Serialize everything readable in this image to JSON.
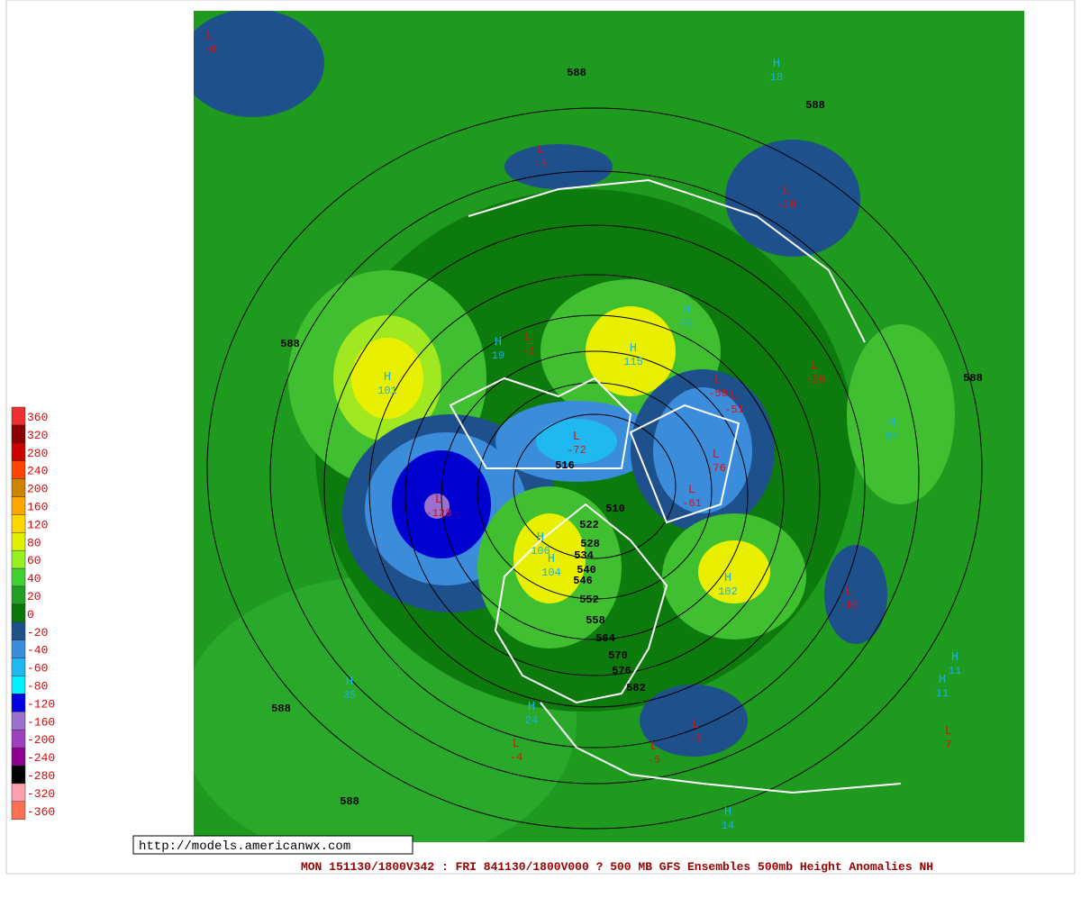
{
  "legend": {
    "items": [
      {
        "label": "360",
        "color": "#ee3030"
      },
      {
        "label": "320",
        "color": "#8b0000"
      },
      {
        "label": "280",
        "color": "#cd0000"
      },
      {
        "label": "240",
        "color": "#ff4500"
      },
      {
        "label": "200",
        "color": "#cd8500"
      },
      {
        "label": "160",
        "color": "#ffa500"
      },
      {
        "label": "120",
        "color": "#ffd700"
      },
      {
        "label": "80",
        "color": "#e0f000"
      },
      {
        "label": "60",
        "color": "#98f020"
      },
      {
        "label": "40",
        "color": "#40d030"
      },
      {
        "label": "20",
        "color": "#22a022"
      },
      {
        "label": "0",
        "color": "#0a780a"
      },
      {
        "label": "-20",
        "color": "#1e508c"
      },
      {
        "label": "-40",
        "color": "#3c8cdc"
      },
      {
        "label": "-60",
        "color": "#20b8f0"
      },
      {
        "label": "-80",
        "color": "#00f0ff"
      },
      {
        "label": "-120",
        "color": "#0000e0"
      },
      {
        "label": "-160",
        "color": "#9a70d0"
      },
      {
        "label": "-200",
        "color": "#a040c0"
      },
      {
        "label": "-240",
        "color": "#900090"
      },
      {
        "label": "-280",
        "color": "#000000"
      },
      {
        "label": "-320",
        "color": "#ffa0b0"
      },
      {
        "label": "-360",
        "color": "#ff7050"
      }
    ]
  },
  "map": {
    "pressure_centers": [
      {
        "type": "H",
        "value": "101"
      },
      {
        "type": "L",
        "value": "-128"
      },
      {
        "type": "H",
        "value": "115"
      },
      {
        "type": "L",
        "value": "-72"
      },
      {
        "type": "L",
        "value": "-76"
      },
      {
        "type": "L",
        "value": "-61"
      },
      {
        "type": "L",
        "value": "-50"
      },
      {
        "type": "L",
        "value": "-51"
      },
      {
        "type": "L",
        "value": "-29"
      },
      {
        "type": "H",
        "value": "106"
      },
      {
        "type": "H",
        "value": "104"
      },
      {
        "type": "H",
        "value": "102"
      },
      {
        "type": "L",
        "value": "-10"
      },
      {
        "type": "H",
        "value": "35"
      },
      {
        "type": "H",
        "value": "76"
      },
      {
        "type": "H",
        "value": "57"
      },
      {
        "type": "L",
        "value": "-1"
      },
      {
        "type": "H",
        "value": "19"
      },
      {
        "type": "L",
        "value": "-16"
      },
      {
        "type": "H",
        "value": "18"
      },
      {
        "type": "L",
        "value": "-8"
      },
      {
        "type": "L",
        "value": "-5"
      },
      {
        "type": "L",
        "value": "-4"
      },
      {
        "type": "H",
        "value": "24"
      },
      {
        "type": "H",
        "value": "14"
      },
      {
        "type": "H",
        "value": "11"
      },
      {
        "type": "H",
        "value": "11"
      },
      {
        "type": "L",
        "value": "7"
      },
      {
        "type": "L",
        "value": "-3"
      },
      {
        "type": "L",
        "value": "-6"
      }
    ],
    "contour_labels": [
      "588",
      "588",
      "588",
      "588",
      "588",
      "588",
      "516",
      "510",
      "522",
      "528",
      "534",
      "540",
      "546",
      "552",
      "558",
      "564",
      "570",
      "576",
      "582"
    ]
  },
  "url": "http://models.americanwx.com",
  "caption": "MON 151130/1800V342 : FRI 841130/1800V000  ? 500 MB GFS Ensembles 500mb Height Anomalies NH"
}
